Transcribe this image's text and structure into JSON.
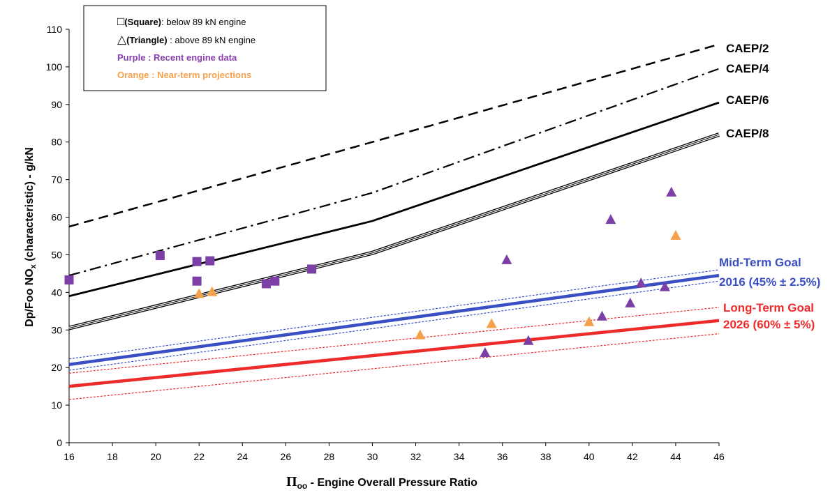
{
  "chart_data": {
    "type": "scatter",
    "xlabel_symbol": "Π",
    "xlabel_subscript": "oo",
    "xlabel_rest": " - Engine Overall Pressure Ratio",
    "ylabel_main": "Dp/Foo NO",
    "ylabel_subscript": "x",
    "ylabel_rest": " (characteristic)  - g/kN",
    "xlim": [
      16,
      46
    ],
    "ylim": [
      0,
      110
    ],
    "xticks": [
      "16",
      "18",
      "20",
      "22",
      "24",
      "26",
      "28",
      "30",
      "32",
      "34",
      "36",
      "38",
      "40",
      "42",
      "44",
      "46"
    ],
    "yticks": [
      "0",
      "10",
      "20",
      "30",
      "40",
      "50",
      "60",
      "70",
      "80",
      "90",
      "100",
      "110"
    ],
    "legend": {
      "square_symbol": "□",
      "square_bold": "(Square)",
      "square_rest": ": below 89 kN engine",
      "triangle_symbol": "△",
      "triangle_bold": "(Triangle)",
      "triangle_rest": " : above 89 kN engine",
      "purple_text": "Purple : Recent engine data",
      "orange_text": "Orange : Near-term projections"
    },
    "lines": [
      {
        "name": "CAEP/2",
        "style": "dashed",
        "color": "#000000",
        "points": [
          [
            16,
            57.5
          ],
          [
            30,
            80
          ],
          [
            46,
            106
          ]
        ]
      },
      {
        "name": "CAEP/4",
        "style": "dashdot",
        "color": "#000000",
        "points": [
          [
            16,
            44.5
          ],
          [
            30,
            66.5
          ],
          [
            46,
            99.5
          ]
        ]
      },
      {
        "name": "CAEP/6",
        "style": "solid",
        "color": "#000000",
        "points": [
          [
            16,
            39
          ],
          [
            30,
            59
          ],
          [
            46,
            90.5
          ]
        ]
      },
      {
        "name": "CAEP/8",
        "style": "triple",
        "color": "#000000",
        "points": [
          [
            16,
            30.5
          ],
          [
            30,
            50.5
          ],
          [
            46,
            82
          ]
        ]
      },
      {
        "name_line1": "Mid-Term Goal",
        "name_line2": "2016 (45% ± 2.5%)",
        "style": "band",
        "color": "#3a4fc4",
        "points": [
          [
            16,
            20.8
          ],
          [
            46,
            44.5
          ]
        ],
        "band_offset": 1.5
      },
      {
        "name_line1": "Long-Term Goal",
        "name_line2": "2026 (60% ± 5%)",
        "style": "band",
        "color": "#ee2b2b",
        "points": [
          [
            16,
            15
          ],
          [
            46,
            32.5
          ]
        ],
        "band_offset": 3.5
      }
    ],
    "series": [
      {
        "marker": "square",
        "color": "#7b3fa5",
        "points": [
          [
            16,
            43.3
          ],
          [
            20.2,
            49.8
          ],
          [
            21.9,
            48.2
          ],
          [
            22.5,
            48.4
          ],
          [
            21.9,
            43
          ],
          [
            25.1,
            42.3
          ],
          [
            25.5,
            43
          ],
          [
            27.2,
            46.2
          ]
        ]
      },
      {
        "marker": "triangle",
        "color": "#7b3fa5",
        "points": [
          [
            35.2,
            23.8
          ],
          [
            36.2,
            48.5
          ],
          [
            37.2,
            27
          ],
          [
            40.6,
            33.5
          ],
          [
            41,
            59.2
          ],
          [
            41.9,
            37
          ],
          [
            42.4,
            42.3
          ],
          [
            43.5,
            41.3
          ],
          [
            43.8,
            66.5
          ]
        ]
      },
      {
        "marker": "triangle",
        "color": "#f5a04a",
        "points": [
          [
            22,
            39.5
          ],
          [
            22.6,
            40
          ],
          [
            32.2,
            28.5
          ],
          [
            35.5,
            31.5
          ],
          [
            40,
            32
          ],
          [
            44,
            55
          ]
        ]
      }
    ]
  }
}
